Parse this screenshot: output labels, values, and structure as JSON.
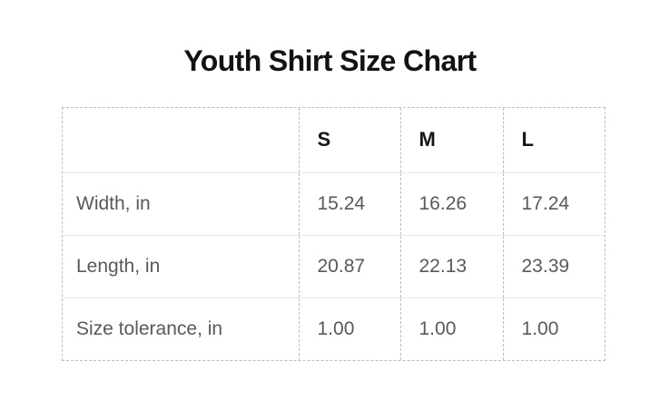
{
  "title": "Youth Shirt Size Chart",
  "chart_data": {
    "type": "table",
    "title": "Youth Shirt Size Chart",
    "columns": [
      "",
      "S",
      "M",
      "L"
    ],
    "rows": [
      {
        "label": "Width, in",
        "values": [
          "15.24",
          "16.26",
          "17.24"
        ]
      },
      {
        "label": "Length, in",
        "values": [
          "20.87",
          "22.13",
          "23.39"
        ]
      },
      {
        "label": "Size tolerance, in",
        "values": [
          "1.00",
          "1.00",
          "1.00"
        ]
      }
    ],
    "units": "in"
  },
  "colors": {
    "background": "#ffffff",
    "title_text": "#121212",
    "header_text": "#161616",
    "body_text": "#595959",
    "dashed_border": "#bdbdbd",
    "row_divider": "#e8e8e8"
  }
}
